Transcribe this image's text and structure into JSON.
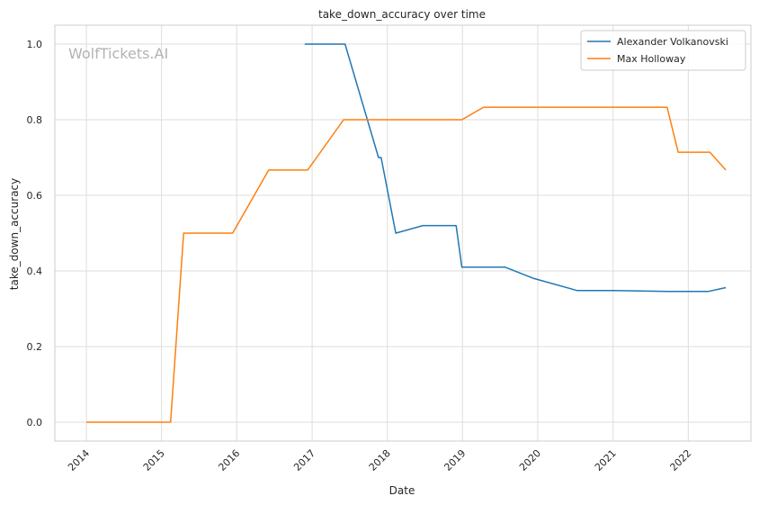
{
  "chart_data": {
    "type": "line",
    "title": "take_down_accuracy over time",
    "xlabel": "Date",
    "ylabel": "take_down_accuracy",
    "watermark": "WolfTickets.AI",
    "xlim": [
      "2013-08-01",
      "2022-11-01"
    ],
    "ylim": [
      -0.05,
      1.05
    ],
    "x_ticks": [
      "2014",
      "2015",
      "2016",
      "2017",
      "2018",
      "2019",
      "2020",
      "2021",
      "2022"
    ],
    "y_ticks": [
      "0.0",
      "0.2",
      "0.4",
      "0.6",
      "0.8",
      "1.0"
    ],
    "grid": true,
    "legend_position": "top-right",
    "series": [
      {
        "name": "Alexander Volkanovski",
        "color": "#1f77b4",
        "points": [
          {
            "x": "2016-11-26",
            "y": 1.0
          },
          {
            "x": "2017-06-10",
            "y": 1.0
          },
          {
            "x": "2017-11-19",
            "y": 0.7
          },
          {
            "x": "2017-12-02",
            "y": 0.7
          },
          {
            "x": "2018-02-11",
            "y": 0.5
          },
          {
            "x": "2018-06-23",
            "y": 0.52
          },
          {
            "x": "2018-12-01",
            "y": 0.52
          },
          {
            "x": "2018-12-29",
            "y": 0.41
          },
          {
            "x": "2019-07-27",
            "y": 0.41
          },
          {
            "x": "2019-12-14",
            "y": 0.38
          },
          {
            "x": "2020-07-11",
            "y": 0.348
          },
          {
            "x": "2021-01-01",
            "y": 0.348
          },
          {
            "x": "2021-09-25",
            "y": 0.346
          },
          {
            "x": "2022-04-09",
            "y": 0.346
          },
          {
            "x": "2022-07-02",
            "y": 0.356
          }
        ]
      },
      {
        "name": "Max Holloway",
        "color": "#ff7f0e",
        "points": [
          {
            "x": "2014-01-01",
            "y": 0.0
          },
          {
            "x": "2015-02-14",
            "y": 0.0
          },
          {
            "x": "2015-04-18",
            "y": 0.5
          },
          {
            "x": "2015-12-12",
            "y": 0.5
          },
          {
            "x": "2016-06-04",
            "y": 0.667
          },
          {
            "x": "2016-12-10",
            "y": 0.667
          },
          {
            "x": "2017-06-03",
            "y": 0.8
          },
          {
            "x": "2018-12-29",
            "y": 0.8
          },
          {
            "x": "2019-04-13",
            "y": 0.833
          },
          {
            "x": "2021-09-20",
            "y": 0.833
          },
          {
            "x": "2021-11-13",
            "y": 0.714
          },
          {
            "x": "2022-04-16",
            "y": 0.714
          },
          {
            "x": "2022-07-02",
            "y": 0.667
          }
        ]
      }
    ]
  }
}
